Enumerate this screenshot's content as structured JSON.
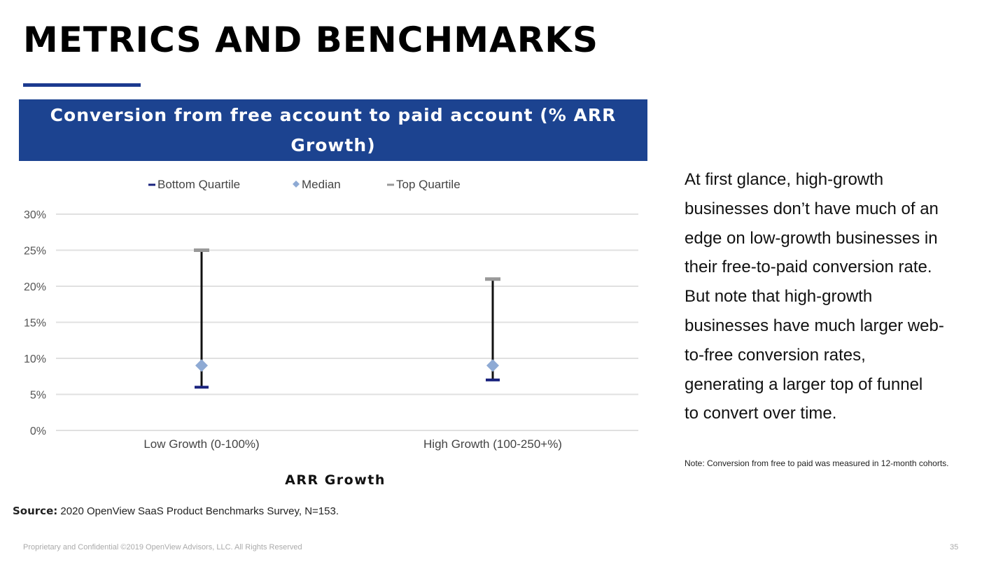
{
  "slide": {
    "title": "METRICS AND BENCHMARKS",
    "page_number": "35",
    "footer": "Proprietary and Confidential ©2019 OpenView Advisors, LLC. All Rights Reserved",
    "accent_color": "#1c4390"
  },
  "commentary": {
    "lines": [
      "At first glance, high-growth",
      "businesses don’t have much of an",
      "edge on low-growth businesses in",
      "their free-to-paid conversion rate.",
      "But note that high-growth",
      "businesses have much larger web-",
      "to-free conversion rates,",
      "generating a larger top of funnel",
      "to convert over time."
    ],
    "note": "Note: Conversion from free to paid  was measured in 12-month cohorts."
  },
  "source": {
    "label": "Source:",
    "text": " 2020 OpenView SaaS Product Benchmarks Survey, N=153."
  },
  "chart_data": {
    "type": "stock-high-low",
    "title": "Conversion from free account to paid account (% ARR Growth)",
    "xlabel": "ARR Growth",
    "ylabel": "",
    "categories": [
      "Low Growth (0-100%)",
      "High Growth (100-250+%)"
    ],
    "series": [
      {
        "name": "Bottom Quartile",
        "values": [
          6,
          7
        ],
        "color": "#1a237e",
        "marker": "dash"
      },
      {
        "name": "Median",
        "values": [
          9,
          9
        ],
        "color": "#8eaad4",
        "marker": "diamond"
      },
      {
        "name": "Top Quartile",
        "values": [
          25,
          21
        ],
        "color": "#999999",
        "marker": "dash"
      }
    ],
    "ylim": [
      0,
      30
    ],
    "yticks": [
      "0%",
      "5%",
      "10%",
      "15%",
      "20%",
      "25%",
      "30%"
    ],
    "grid": true,
    "legend": "top"
  }
}
